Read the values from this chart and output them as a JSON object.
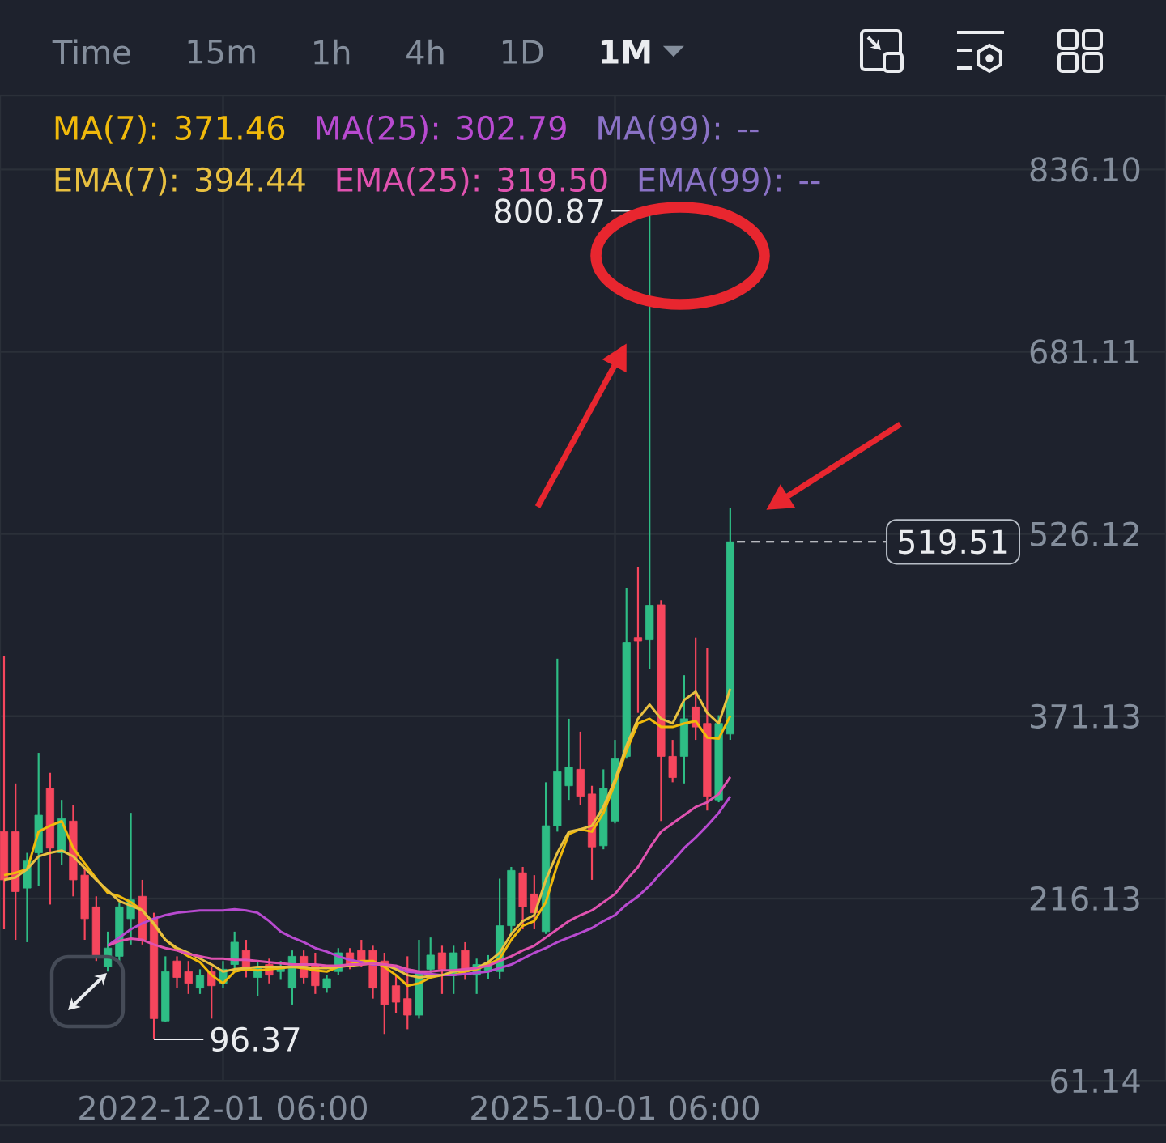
{
  "chart_data": {
    "type": "candlestick",
    "categories": [
      null,
      null,
      null,
      null,
      null,
      null,
      null,
      null,
      null,
      null,
      null,
      null,
      null,
      null,
      null,
      null,
      null,
      null,
      null,
      "2022-12-01 06:00",
      null,
      null,
      null,
      null,
      null,
      null,
      null,
      null,
      null,
      null,
      null,
      null,
      null,
      null,
      null,
      null,
      null,
      null,
      null,
      null,
      null,
      null,
      null,
      null,
      null,
      null,
      null,
      null,
      null,
      null,
      null,
      null,
      null,
      "2025-10-01 06:00",
      null,
      null,
      null,
      null,
      null,
      null,
      null,
      null,
      null,
      null
    ],
    "ohlc": [
      [
        273,
        422,
        190,
        232
      ],
      [
        273,
        314,
        181,
        222
      ],
      [
        225,
        255,
        179,
        248
      ],
      [
        255,
        340,
        227,
        287
      ],
      [
        310,
        323,
        211,
        259
      ],
      [
        255,
        300,
        245,
        284
      ],
      [
        282,
        296,
        218,
        232
      ],
      [
        236,
        243,
        181,
        199
      ],
      [
        209,
        218,
        163,
        167
      ],
      [
        158,
        188,
        154,
        174
      ],
      [
        167,
        213,
        163,
        209
      ],
      [
        199,
        289,
        177,
        215
      ],
      [
        218,
        232,
        177,
        181
      ],
      [
        199,
        204,
        96.37,
        114
      ],
      [
        112,
        167,
        111,
        154
      ],
      [
        163,
        167,
        140,
        149
      ],
      [
        154,
        163,
        135,
        144
      ],
      [
        140,
        156,
        135,
        151
      ],
      [
        154,
        158,
        114,
        142
      ],
      [
        144,
        163,
        140,
        156
      ],
      [
        160,
        188,
        154,
        179
      ],
      [
        172,
        181,
        149,
        156
      ],
      [
        149,
        163,
        133,
        158
      ],
      [
        160,
        165,
        144,
        151
      ],
      [
        154,
        163,
        147,
        158
      ],
      [
        140,
        172,
        126,
        167
      ],
      [
        167,
        172,
        144,
        149
      ],
      [
        160,
        170,
        135,
        142
      ],
      [
        140,
        151,
        136,
        148
      ],
      [
        154,
        174,
        151,
        170
      ],
      [
        170,
        174,
        156,
        160
      ],
      [
        172,
        181,
        158,
        163
      ],
      [
        172,
        176,
        131,
        140
      ],
      [
        163,
        170,
        101,
        126
      ],
      [
        142,
        151,
        119,
        128
      ],
      [
        131,
        167,
        105,
        117
      ],
      [
        117,
        181,
        114,
        154
      ],
      [
        156,
        183,
        151,
        168
      ],
      [
        170,
        176,
        135,
        156
      ],
      [
        151,
        176,
        135,
        170
      ],
      [
        172,
        179,
        147,
        156
      ],
      [
        151,
        165,
        135,
        160
      ],
      [
        154,
        168,
        148,
        162
      ],
      [
        154,
        233,
        148,
        193
      ],
      [
        193,
        243,
        186,
        240
      ],
      [
        238,
        243,
        190,
        209
      ],
      [
        220,
        236,
        190,
        204
      ],
      [
        188,
        315,
        186,
        278
      ],
      [
        278,
        420,
        273,
        324
      ],
      [
        312,
        369,
        300,
        328
      ],
      [
        326,
        358,
        296,
        303
      ],
      [
        305,
        312,
        232,
        260
      ],
      [
        261,
        326,
        258,
        310
      ],
      [
        282,
        351,
        280,
        335
      ],
      [
        337,
        480,
        335,
        434
      ],
      [
        438,
        498,
        374,
        435
      ],
      [
        436,
        800.87,
        411,
        465
      ],
      [
        466,
        470,
        282,
        337
      ],
      [
        337,
        351,
        315,
        319
      ],
      [
        337,
        406,
        314,
        369
      ],
      [
        379,
        438,
        351,
        362
      ],
      [
        365,
        429,
        291,
        303
      ],
      [
        300,
        372,
        298,
        365
      ],
      [
        356,
        548,
        351,
        519.51
      ]
    ],
    "colors": [
      "#f6465d",
      "#f6465d",
      "#2ebd85",
      "#2ebd85",
      "#f6465d",
      "#2ebd85",
      "#f6465d",
      "#f6465d",
      "#f6465d",
      "#2ebd85",
      "#2ebd85",
      "#2ebd85",
      "#f6465d",
      "#f6465d",
      "#2ebd85",
      "#f6465d",
      "#f6465d",
      "#2ebd85",
      "#f6465d",
      "#2ebd85",
      "#2ebd85",
      "#f6465d",
      "#2ebd85",
      "#f6465d",
      "#2ebd85",
      "#2ebd85",
      "#f6465d",
      "#f6465d",
      "#2ebd85",
      "#2ebd85",
      "#f6465d",
      "#f6465d",
      "#f6465d",
      "#f6465d",
      "#f6465d",
      "#f6465d",
      "#2ebd85",
      "#2ebd85",
      "#f6465d",
      "#2ebd85",
      "#f6465d",
      "#2ebd85",
      "#2ebd85",
      "#2ebd85",
      "#2ebd85",
      "#f6465d",
      "#f6465d",
      "#2ebd85",
      "#2ebd85",
      "#2ebd85",
      "#f6465d",
      "#f6465d",
      "#2ebd85",
      "#2ebd85",
      "#2ebd85",
      "#f6465d",
      "#2ebd85",
      "#f6465d",
      "#f6465d",
      "#2ebd85",
      "#f6465d",
      "#f6465d",
      "#2ebd85",
      "#2ebd85"
    ],
    "value_labels": [
      null,
      null,
      null,
      null,
      null,
      null,
      null,
      null,
      null,
      null,
      null,
      null,
      null,
      "96.37",
      null,
      null,
      null,
      null,
      null,
      null,
      null,
      null,
      null,
      null,
      null,
      null,
      null,
      null,
      null,
      null,
      null,
      null,
      null,
      null,
      null,
      null,
      null,
      null,
      null,
      null,
      null,
      null,
      null,
      null,
      null,
      null,
      null,
      null,
      null,
      null,
      null,
      null,
      null,
      null,
      null,
      null,
      "800.87",
      null,
      null,
      null,
      null,
      null,
      null,
      "519.51"
    ],
    "series": [
      {
        "name": "MA(7): 371.46",
        "type": "line",
        "color": "#f0b90b",
        "values": [
          236,
          238,
          241,
          273,
          278,
          282,
          259,
          246,
          233,
          221,
          218,
          213,
          206,
          194,
          181,
          173,
          167,
          162,
          151,
          144,
          154,
          156,
          155,
          156,
          157,
          158,
          157,
          155,
          154,
          158,
          160,
          163,
          163,
          158,
          151,
          142,
          144,
          149,
          151,
          151,
          154,
          156,
          160,
          165,
          181,
          193,
          197,
          213,
          245,
          271,
          275,
          273,
          289,
          314,
          342,
          365,
          369,
          362,
          362,
          365,
          367,
          353,
          352,
          371.46
        ]
      },
      {
        "name": "MA(25): 302.79",
        "type": "line",
        "color": "#b84ad0",
        "values": [
          null,
          null,
          null,
          null,
          null,
          null,
          null,
          null,
          null,
          176,
          183,
          190,
          195,
          199,
          202,
          204,
          205,
          206,
          206,
          206,
          207,
          206,
          204,
          197,
          188,
          183,
          179,
          174,
          171,
          167,
          164,
          162,
          160,
          160,
          157,
          154,
          153,
          152,
          151,
          151,
          152,
          153,
          154,
          157,
          160,
          165,
          170,
          174,
          179,
          183,
          187,
          191,
          197,
          202,
          211,
          218,
          227,
          238,
          248,
          259,
          268,
          278,
          289,
          302.79
        ]
      },
      {
        "name": "MA(99): --",
        "type": "line",
        "color": "#8a72c6",
        "values": [
          null,
          null,
          null,
          null,
          null,
          null,
          null,
          null,
          null,
          null,
          null,
          null,
          null,
          null,
          null,
          null,
          null,
          null,
          null,
          null,
          null,
          null,
          null,
          null,
          null,
          null,
          null,
          null,
          null,
          null,
          null,
          null,
          null,
          null,
          null,
          null,
          null,
          null,
          null,
          null,
          null,
          null,
          null,
          null,
          null,
          null,
          null,
          null,
          null,
          null,
          null,
          null,
          null,
          null,
          null,
          null,
          null,
          null,
          null,
          null,
          null,
          null,
          null,
          null
        ]
      },
      {
        "name": "EMA(7): 394.44",
        "type": "line",
        "color": "#e8c040",
        "values": [
          232,
          234,
          241,
          252,
          255,
          257,
          252,
          242,
          232,
          223,
          214,
          210,
          206,
          195,
          181,
          174,
          170,
          165,
          160,
          154,
          156,
          157,
          158,
          158,
          158,
          158,
          158,
          157,
          157,
          158,
          159,
          160,
          161,
          160,
          156,
          151,
          149,
          150,
          151,
          154,
          155,
          157,
          162,
          170,
          186,
          197,
          202,
          232,
          255,
          273,
          275,
          278,
          294,
          317,
          346,
          369,
          381,
          369,
          365,
          385,
          392,
          374,
          365,
          394.44
        ]
      },
      {
        "name": "EMA(25): 319.50",
        "type": "line",
        "color": "#e052b0",
        "values": [
          null,
          null,
          null,
          null,
          null,
          null,
          null,
          null,
          null,
          176,
          180,
          182,
          181,
          177,
          174,
          172,
          169,
          167,
          165,
          165,
          164,
          164,
          163,
          162,
          161,
          160,
          160,
          160,
          159,
          159,
          160,
          160,
          161,
          160,
          159,
          156,
          154,
          154,
          155,
          155,
          156,
          157,
          159,
          163,
          167,
          172,
          176,
          183,
          190,
          197,
          202,
          206,
          213,
          220,
          232,
          243,
          259,
          273,
          280,
          287,
          294,
          298,
          305,
          319.5
        ]
      },
      {
        "name": "EMA(99): --",
        "type": "line",
        "color": "#8a72c6",
        "values": [
          null,
          null,
          null,
          null,
          null,
          null,
          null,
          null,
          null,
          null,
          null,
          null,
          null,
          null,
          null,
          null,
          null,
          null,
          null,
          null,
          null,
          null,
          null,
          null,
          null,
          null,
          null,
          null,
          null,
          null,
          null,
          null,
          null,
          null,
          null,
          null,
          null,
          null,
          null,
          null,
          null,
          null,
          null,
          null,
          null,
          null,
          null,
          null,
          null,
          null,
          null,
          null,
          null,
          null,
          null,
          null,
          null,
          null,
          null,
          null,
          null,
          null,
          null,
          null
        ]
      }
    ],
    "ylim": [
      61,
      899
    ],
    "yticks": [
      61.14,
      216.13,
      371.13,
      526.12,
      681.11,
      {
        "value": 836.1,
        "label": "836.10"
      }
    ],
    "grid": true,
    "legend": "top left",
    "annotations": [
      "Time",
      "15m",
      "1h",
      "4h",
      "1D",
      "1M"
    ]
  }
}
